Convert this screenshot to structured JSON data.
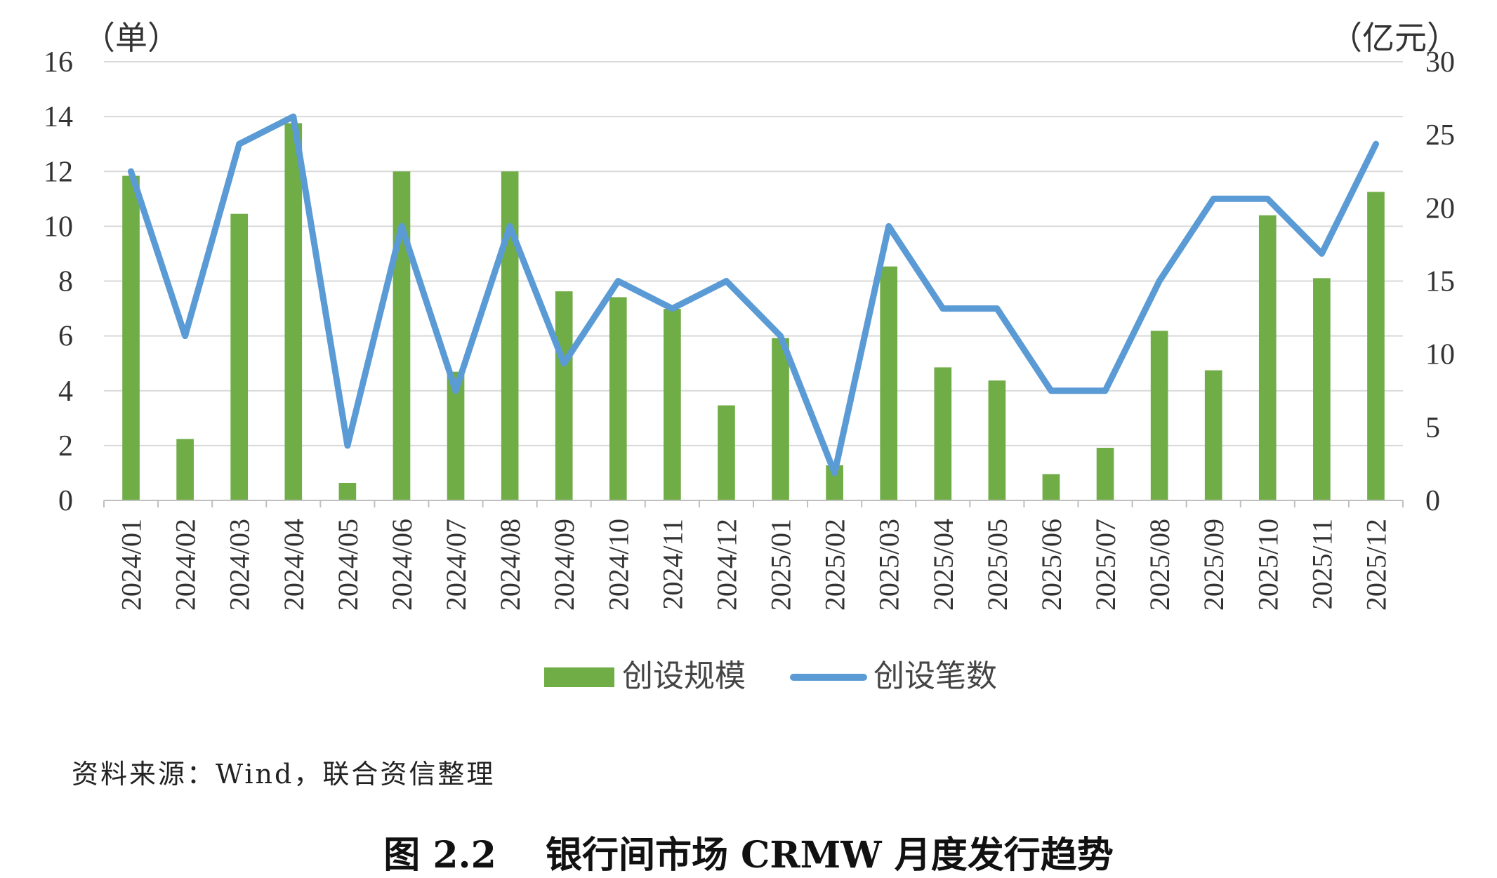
{
  "chart_data": {
    "type": "bar",
    "categories": [
      "2024/01",
      "2024/02",
      "2024/03",
      "2024/04",
      "2024/05",
      "2024/06",
      "2024/07",
      "2024/08",
      "2024/09",
      "2024/10",
      "2024/11",
      "2024/12",
      "2025/01",
      "2025/02",
      "2025/03",
      "2025/04",
      "2025/05",
      "2025/06",
      "2025/07",
      "2025/08",
      "2025/09",
      "2025/10",
      "2025/11",
      "2025/12"
    ],
    "series": [
      {
        "name": "创设规模",
        "type": "bar",
        "axis": "right",
        "color": "#70ad47",
        "values": [
          22.2,
          4.2,
          19.6,
          25.8,
          1.2,
          22.5,
          8.8,
          22.5,
          14.3,
          13.9,
          13.1,
          6.5,
          11.1,
          2.4,
          16.0,
          9.1,
          8.2,
          1.8,
          3.6,
          11.6,
          8.9,
          19.5,
          15.2,
          21.1
        ]
      },
      {
        "name": "创设笔数",
        "type": "line",
        "axis": "left",
        "color": "#5b9bd5",
        "values": [
          12,
          6,
          13,
          14,
          2,
          10,
          4,
          10,
          5,
          8,
          7,
          8,
          6,
          1,
          10,
          7,
          7,
          4,
          4,
          8,
          11,
          11,
          9,
          13
        ]
      }
    ],
    "y_left": {
      "unit_label": "（单）",
      "ylim": [
        0,
        16
      ],
      "ticks": [
        0,
        2,
        4,
        6,
        8,
        10,
        12,
        14,
        16
      ]
    },
    "y_right": {
      "unit_label": "（亿元）",
      "ylim": [
        0,
        30
      ],
      "ticks": [
        0,
        5,
        10,
        15,
        20,
        25,
        30
      ]
    },
    "grid": true,
    "legend_position": "bottom"
  },
  "source_note": "资料来源：Wind，联合资信整理",
  "caption": "图 2.2　 银行间市场 CRMW 月度发行趋势"
}
